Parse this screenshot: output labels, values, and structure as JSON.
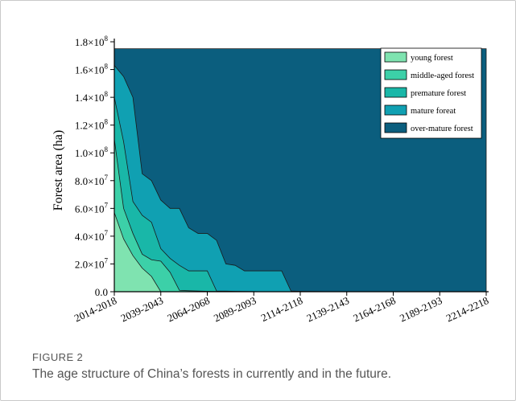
{
  "figure": {
    "label": "FIGURE 2",
    "caption": "The age structure of China’s forests in currently and in the future."
  },
  "chart_data": {
    "type": "area",
    "stacked": true,
    "ylabel": "Forest area (ha)",
    "xlabel": "",
    "ylim": [
      0,
      180000000
    ],
    "y_ticks": [
      {
        "value": 0,
        "label": "0.0"
      },
      {
        "value": 20000000,
        "label": "2.0×10",
        "exp": "7"
      },
      {
        "value": 40000000,
        "label": "4.0×10",
        "exp": "7"
      },
      {
        "value": 60000000,
        "label": "6.0×10",
        "exp": "7"
      },
      {
        "value": 80000000,
        "label": "8.0×10",
        "exp": "7"
      },
      {
        "value": 100000000,
        "label": "1.0×10",
        "exp": "8"
      },
      {
        "value": 120000000,
        "label": "1.2×10",
        "exp": "8"
      },
      {
        "value": 140000000,
        "label": "1.4×10",
        "exp": "8"
      },
      {
        "value": 160000000,
        "label": "1.6×10",
        "exp": "8"
      },
      {
        "value": 180000000,
        "label": "1.8×10",
        "exp": "8"
      }
    ],
    "x_categories": [
      "2014-2018",
      "2039-2043",
      "2064-2068",
      "2089-2093",
      "2114-2118",
      "2139-2143",
      "2164-2168",
      "2189-2193",
      "2214-2218"
    ],
    "x_step": 5,
    "x": [
      2014,
      2019,
      2024,
      2029,
      2034,
      2039,
      2044,
      2049,
      2054,
      2059,
      2064,
      2069,
      2074,
      2079,
      2084,
      2089,
      2094,
      2099,
      2104,
      2109,
      2114,
      2119,
      2124,
      2129,
      2134,
      2139,
      2144,
      2149,
      2154,
      2159,
      2164,
      2169,
      2174,
      2179,
      2184,
      2189,
      2194,
      2199,
      2204,
      2209,
      2214
    ],
    "cumulative_series": [
      {
        "name": "young forest",
        "color": "#7fe3b0",
        "values": [
          57000000,
          38000000,
          26000000,
          17000000,
          11000000,
          0,
          0,
          0,
          0,
          0,
          0,
          0,
          0,
          0,
          0,
          0,
          0,
          0,
          0,
          0,
          0,
          0,
          0,
          0,
          0,
          0,
          0,
          0,
          0,
          0,
          0,
          0,
          0,
          0,
          0,
          0,
          0,
          0,
          0,
          0,
          0
        ]
      },
      {
        "name": "middle-aged forest",
        "color": "#3cd0a8",
        "values": [
          110000000,
          60000000,
          42000000,
          27000000,
          23000000,
          22000000,
          14000000,
          1000000,
          700000,
          500000,
          300000,
          200000,
          0,
          0,
          0,
          0,
          0,
          0,
          0,
          0,
          0,
          0,
          0,
          0,
          0,
          0,
          0,
          0,
          0,
          0,
          0,
          0,
          0,
          0,
          0,
          0,
          0,
          0,
          0,
          0,
          0
        ]
      },
      {
        "name": "premature forest",
        "color": "#19b7a8",
        "values": [
          140000000,
          108000000,
          65000000,
          55000000,
          50000000,
          31000000,
          24000000,
          19000000,
          15000000,
          15000000,
          15000000,
          500000,
          400000,
          300000,
          200000,
          100000,
          0,
          0,
          0,
          0,
          0,
          0,
          0,
          0,
          0,
          0,
          0,
          0,
          0,
          0,
          0,
          0,
          0,
          0,
          0,
          0,
          0,
          0,
          0,
          0,
          0
        ]
      },
      {
        "name": "mature foreat",
        "color": "#10a0b2",
        "values": [
          163000000,
          155000000,
          140000000,
          85000000,
          80000000,
          66000000,
          60000000,
          60000000,
          46000000,
          42000000,
          42000000,
          37000000,
          20000000,
          19000000,
          15000000,
          15000000,
          15000000,
          15000000,
          15000000,
          500000,
          300000,
          200000,
          100000,
          0,
          0,
          0,
          0,
          0,
          0,
          0,
          0,
          0,
          0,
          0,
          0,
          0,
          0,
          0,
          0,
          0,
          0
        ]
      },
      {
        "name": "over-mature forest",
        "color": "#0b5e7e",
        "values": [
          175000000,
          175000000,
          175000000,
          175000000,
          175000000,
          175000000,
          175000000,
          175000000,
          175000000,
          175000000,
          175000000,
          175000000,
          175000000,
          175000000,
          175000000,
          175000000,
          175000000,
          175000000,
          175000000,
          175000000,
          175000000,
          175000000,
          175000000,
          175000000,
          175000000,
          175000000,
          175000000,
          175000000,
          175000000,
          175000000,
          175000000,
          175000000,
          175000000,
          175000000,
          175000000,
          175000000,
          175000000,
          175000000,
          175000000,
          175000000,
          175000000
        ]
      }
    ],
    "legend": {
      "placement": "top-right"
    },
    "grid": false
  }
}
